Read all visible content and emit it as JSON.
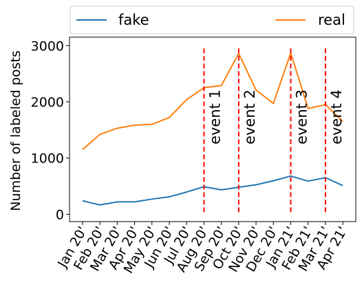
{
  "chart_data": {
    "type": "line",
    "categories": [
      "Jan 20'",
      "Feb 20'",
      "Mar 20'",
      "Apr 20'",
      "May 20'",
      "Jun 20'",
      "Jul 20'",
      "Aug 20'",
      "Sep 20'",
      "Oct 20'",
      "Nov 20'",
      "Dec 20'",
      "Jan 21'",
      "Feb 21'",
      "Mar 21'",
      "Apr 21'"
    ],
    "x": [
      0,
      1,
      2,
      3,
      4,
      5,
      6,
      7,
      8,
      9,
      10,
      11,
      12,
      13,
      14,
      15
    ],
    "series": [
      {
        "name": "fake",
        "color": "#1f77b4",
        "values": [
          240,
          165,
          220,
          220,
          270,
          310,
          395,
          490,
          435,
          480,
          525,
          595,
          680,
          590,
          650,
          510
        ]
      },
      {
        "name": "real",
        "color": "#ff7f0e",
        "values": [
          1150,
          1420,
          1530,
          1585,
          1600,
          1720,
          2040,
          2250,
          2290,
          2860,
          2210,
          1970,
          2870,
          1880,
          1950,
          1650
        ]
      }
    ],
    "events": [
      {
        "label": "event 1",
        "x": 7
      },
      {
        "label": "event 2",
        "x": 9
      },
      {
        "label": "event 3",
        "x": 12
      },
      {
        "label": "event 4",
        "x": 14
      }
    ],
    "event_line_range": [
      0,
      2950
    ],
    "event_color": "#ff0000",
    "ylabel": "Number of labeled posts",
    "yticks": [
      0,
      1000,
      2000,
      3000
    ],
    "ylim": [
      -130,
      3150
    ],
    "xlim": [
      -0.75,
      15.75
    ],
    "grid": false,
    "legend_placement": "top, above plot"
  }
}
